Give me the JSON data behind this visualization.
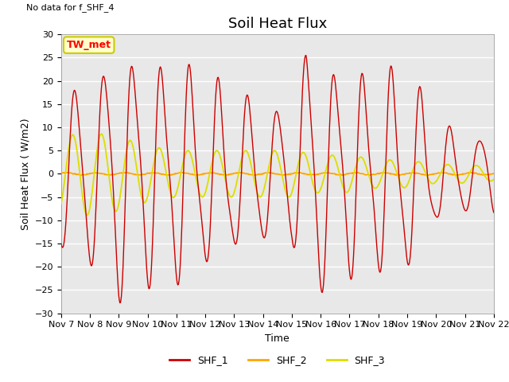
{
  "title": "Soil Heat Flux",
  "xlabel": "Time",
  "ylabel": "Soil Heat Flux (W/m2)",
  "no_data_text": "No data for f_SHF_4",
  "station_label": "TW_met",
  "ylim": [
    -30,
    30
  ],
  "yticks": [
    -30,
    -25,
    -20,
    -15,
    -10,
    -5,
    0,
    5,
    10,
    15,
    20,
    25,
    30
  ],
  "xtick_labels": [
    "Nov 7",
    "Nov 8",
    "Nov 9",
    "Nov 10",
    "Nov 11",
    "Nov 12",
    "Nov 13",
    "Nov 14",
    "Nov 15",
    "Nov 16",
    "Nov 17",
    "Nov 18",
    "Nov 19",
    "Nov 20",
    "Nov 21",
    "Nov 22"
  ],
  "line_colors": {
    "SHF_1": "#cc0000",
    "SHF_2": "#ffa500",
    "SHF_3": "#dddd00"
  },
  "background_color": "#e8e8e8",
  "fig_background": "#ffffff",
  "title_fontsize": 13,
  "label_fontsize": 9,
  "tick_fontsize": 8,
  "station_box_facecolor": "#ffffcc",
  "station_box_edgecolor": "#cccc00"
}
